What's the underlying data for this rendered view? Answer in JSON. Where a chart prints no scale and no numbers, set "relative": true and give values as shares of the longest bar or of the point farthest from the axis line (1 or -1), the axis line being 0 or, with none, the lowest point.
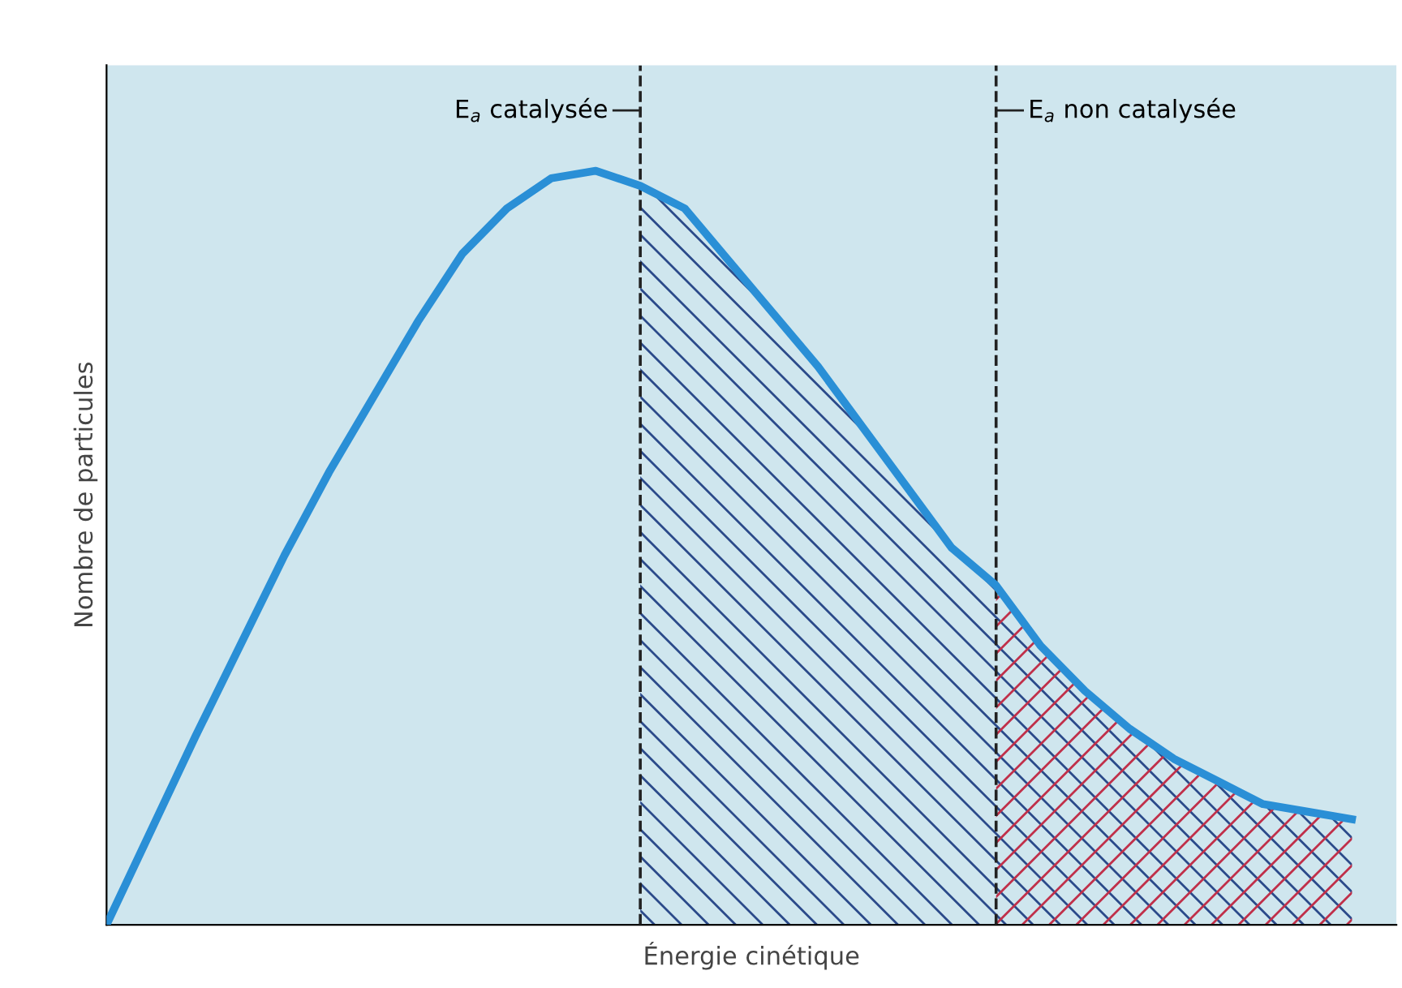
{
  "chart_data": {
    "type": "line",
    "relative": true,
    "xlabel": "Énergie cinétique",
    "ylabel": "Nombre de particules",
    "categories": [
      null,
      null,
      null,
      null,
      null,
      null,
      null,
      null,
      null,
      null,
      null,
      null,
      null,
      null,
      null,
      null,
      null,
      null,
      null,
      null,
      null,
      null,
      null,
      null,
      null,
      null,
      null,
      null,
      null
    ],
    "series": [
      {
        "color": "#2a8fd6",
        "values": [
          0,
          0.125,
          0.25,
          0.37,
          0.49,
          0.6,
          0.7,
          0.8,
          0.89,
          0.95,
          0.99,
          1.0,
          0.98,
          0.95,
          0.88,
          0.81,
          0.74,
          0.66,
          0.58,
          0.5,
          0.45,
          0.37,
          0.31,
          0.26,
          0.22,
          0.19,
          0.16,
          0.15,
          0.14
        ]
      }
    ],
    "line_style": "solid",
    "annotations": [
      "E$_{a}$ catalysée",
      "E$_{a}$ non catalysée"
    ]
  }
}
